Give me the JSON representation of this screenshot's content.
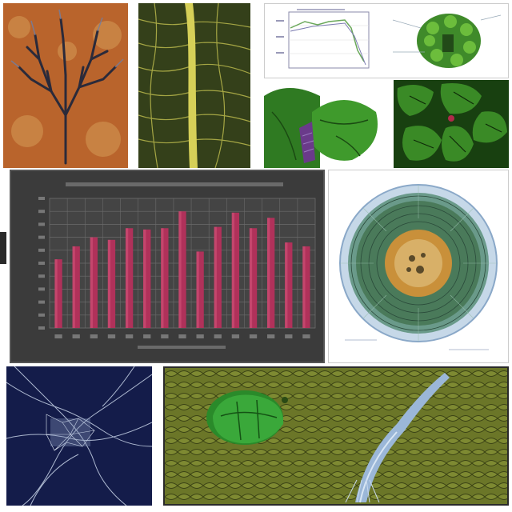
{
  "chart_data": {
    "type": "bar",
    "categories": [
      "",
      "",
      "",
      "",
      "",
      "",
      "",
      "",
      "",
      "",
      "",
      "",
      "",
      "",
      ""
    ],
    "values": [
      53,
      63,
      70,
      68,
      77,
      76,
      77,
      90,
      59,
      78,
      89,
      77,
      85,
      66,
      63
    ],
    "title": "",
    "xlabel": "",
    "ylabel": "",
    "ylim": [
      0,
      100
    ],
    "grid": true,
    "colors": {
      "bar": "#b0315a",
      "bar_light": "#d2557a",
      "background": "#3b3b3b",
      "grid": "#6b6b6b",
      "frame": "#555555"
    }
  },
  "palette": {
    "lichen_bg": "#b9642c",
    "leaf_bg": "#3c4a18",
    "leaf_vein": "#d6d058",
    "green_dark": "#1f5a14",
    "green_light": "#4fa832",
    "purple": "#6a3a8a",
    "stem_blue": "#9bb7d8",
    "navy": "#141c4a",
    "section_tan": "#c9903a",
    "mesh_olive": "#5f6a24"
  },
  "icons": [
    "lichen-illustration",
    "leaf-vein-illustration",
    "line-plot-figure",
    "plant-bud-diagram",
    "leaf-closeup",
    "leaf-tissue-closeup",
    "cross-section-diagram",
    "cell-network-illustration",
    "tissue-mesh-illustration"
  ]
}
